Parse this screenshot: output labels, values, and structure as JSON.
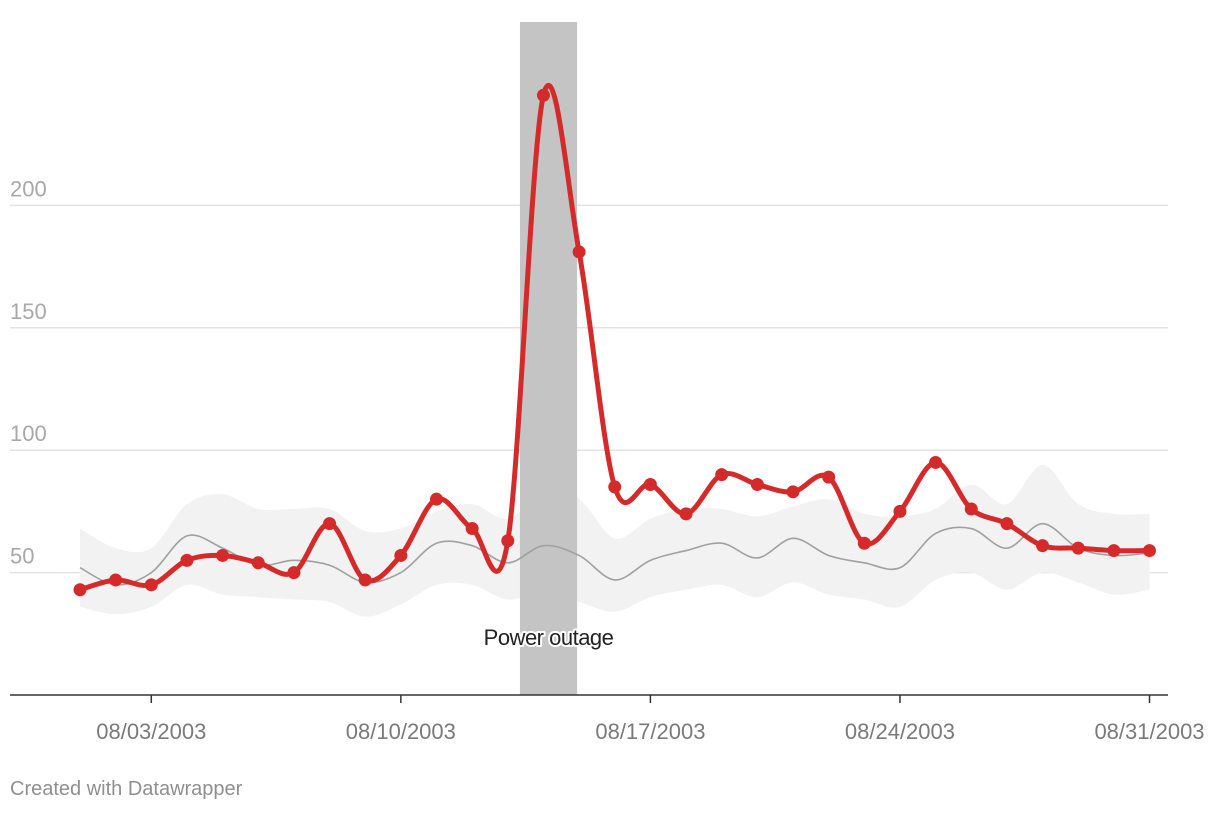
{
  "chart_data": {
    "type": "line",
    "xlabel": "",
    "ylabel": "",
    "ylim": [
      0,
      260
    ],
    "y_ticks": [
      "50",
      "100",
      "150",
      "200"
    ],
    "y_tick_values": [
      50,
      100,
      150,
      200
    ],
    "x_ticks": [
      "08/03/2003",
      "08/10/2003",
      "08/17/2003",
      "08/24/2003",
      "08/31/2003"
    ],
    "x_tick_dates": [
      "2003-08-03",
      "2003-08-10",
      "2003-08-17",
      "2003-08-24",
      "2003-08-31"
    ],
    "grid": "horizontal",
    "dates": [
      "2003-08-01",
      "2003-08-02",
      "2003-08-03",
      "2003-08-04",
      "2003-08-05",
      "2003-08-06",
      "2003-08-07",
      "2003-08-08",
      "2003-08-09",
      "2003-08-10",
      "2003-08-11",
      "2003-08-12",
      "2003-08-13",
      "2003-08-14",
      "2003-08-15",
      "2003-08-16",
      "2003-08-17",
      "2003-08-18",
      "2003-08-19",
      "2003-08-20",
      "2003-08-21",
      "2003-08-22",
      "2003-08-23",
      "2003-08-24",
      "2003-08-25",
      "2003-08-26",
      "2003-08-27",
      "2003-08-28",
      "2003-08-29",
      "2003-08-30",
      "2003-08-31"
    ],
    "series": [
      {
        "color": "#d52a2a",
        "values": [
          43,
          47,
          45,
          55,
          57,
          54,
          50,
          70,
          47,
          57,
          80,
          68,
          63,
          245,
          181,
          85,
          86,
          74,
          90,
          86,
          83,
          89,
          62,
          75,
          95,
          76,
          70,
          61,
          60,
          59,
          59
        ]
      },
      {
        "color": "#a0a0a0",
        "values": [
          52,
          45,
          50,
          65,
          60,
          53,
          55,
          53,
          46,
          50,
          62,
          61,
          54,
          61,
          57,
          47,
          55,
          59,
          62,
          56,
          64,
          57,
          54,
          52,
          66,
          68,
          60,
          70,
          60,
          57,
          58
        ]
      }
    ],
    "range_band": {
      "color": "#f2f2f2",
      "upper": [
        68,
        60,
        60,
        78,
        82,
        76,
        76,
        76,
        67,
        68,
        75,
        78,
        72,
        83,
        80,
        64,
        72,
        76,
        76,
        73,
        77,
        80,
        74,
        73,
        76,
        86,
        78,
        94,
        78,
        74,
        74
      ],
      "lower": [
        36,
        33,
        36,
        45,
        41,
        40,
        39,
        38,
        32,
        37,
        45,
        45,
        39,
        42,
        38,
        34,
        40,
        43,
        45,
        40,
        46,
        41,
        39,
        36,
        47,
        50,
        43,
        50,
        46,
        41,
        43
      ]
    },
    "highlight": {
      "label": "Power outage",
      "start": "2003-08-14",
      "end": "2003-08-15",
      "color": "#c4c4c4"
    }
  },
  "footer": {
    "credit": "Created with Datawrapper"
  }
}
